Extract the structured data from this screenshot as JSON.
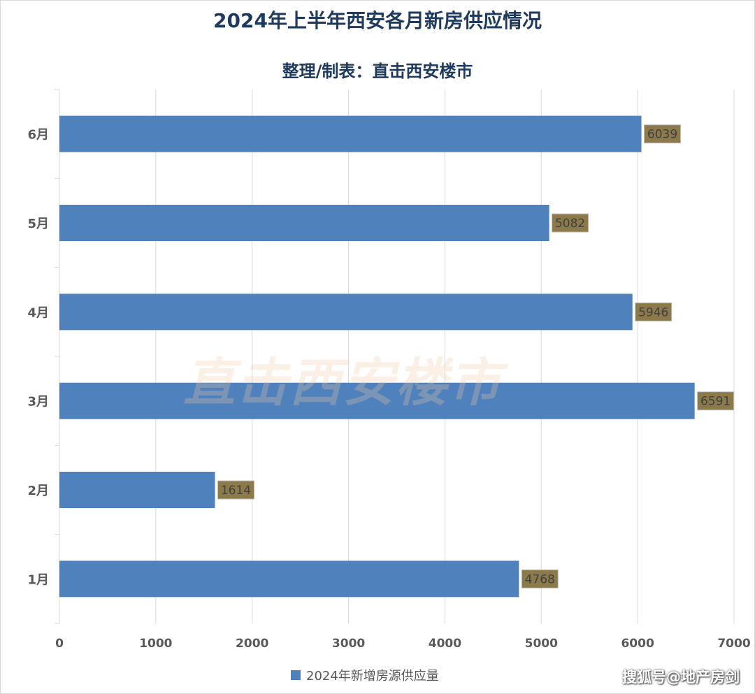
{
  "chart_data": {
    "type": "bar",
    "orientation": "horizontal",
    "title": "2024年上半年西安各月新房供应情况",
    "subtitle": "整理/制表：直击西安楼市",
    "categories": [
      "6月",
      "5月",
      "4月",
      "3月",
      "2月",
      "1月"
    ],
    "series": [
      {
        "name": "2024年新增房源供应量",
        "values": [
          6039,
          5082,
          5946,
          6591,
          1614,
          4768
        ]
      }
    ],
    "xlim": [
      0,
      7000
    ],
    "x_ticks": [
      "0",
      "1000",
      "2000",
      "3000",
      "4000",
      "5000",
      "6000",
      "7000"
    ],
    "grid": true,
    "legend_position": "bottom",
    "bar_color": "#4f81bd",
    "label_box_color": "#8c7a4b"
  },
  "watermark": "直击西安楼市",
  "source": "搜狐号@地产房剑"
}
